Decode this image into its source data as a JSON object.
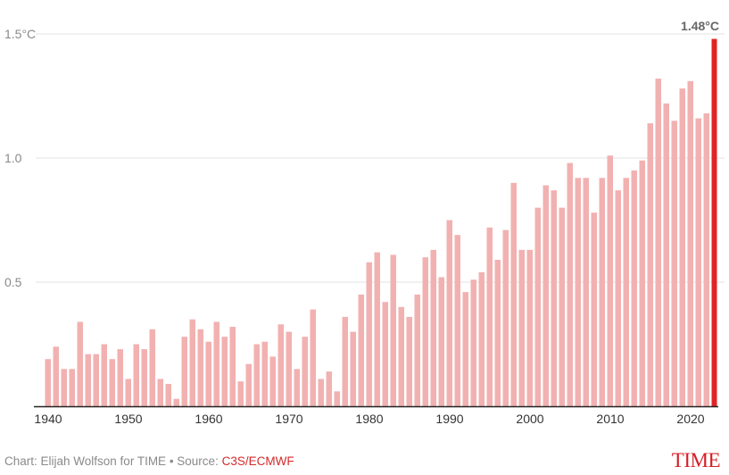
{
  "chart_data": {
    "type": "bar",
    "x": [
      1940,
      1941,
      1942,
      1943,
      1944,
      1945,
      1946,
      1947,
      1948,
      1949,
      1950,
      1951,
      1952,
      1953,
      1954,
      1955,
      1956,
      1957,
      1958,
      1959,
      1960,
      1961,
      1962,
      1963,
      1964,
      1965,
      1966,
      1967,
      1968,
      1969,
      1970,
      1971,
      1972,
      1973,
      1974,
      1975,
      1976,
      1977,
      1978,
      1979,
      1980,
      1981,
      1982,
      1983,
      1984,
      1985,
      1986,
      1987,
      1988,
      1989,
      1990,
      1991,
      1992,
      1993,
      1994,
      1995,
      1996,
      1997,
      1998,
      1999,
      2000,
      2001,
      2002,
      2003,
      2004,
      2005,
      2006,
      2007,
      2008,
      2009,
      2010,
      2011,
      2012,
      2013,
      2014,
      2015,
      2016,
      2017,
      2018,
      2019,
      2020,
      2021,
      2022,
      2023
    ],
    "values": [
      0.19,
      0.24,
      0.15,
      0.15,
      0.34,
      0.21,
      0.21,
      0.25,
      0.19,
      0.23,
      0.11,
      0.25,
      0.23,
      0.31,
      0.11,
      0.09,
      0.03,
      0.28,
      0.35,
      0.31,
      0.26,
      0.34,
      0.28,
      0.32,
      0.1,
      0.17,
      0.25,
      0.26,
      0.2,
      0.33,
      0.3,
      0.15,
      0.28,
      0.39,
      0.11,
      0.14,
      0.06,
      0.36,
      0.3,
      0.45,
      0.58,
      0.62,
      0.42,
      0.61,
      0.4,
      0.36,
      0.45,
      0.6,
      0.63,
      0.52,
      0.75,
      0.69,
      0.46,
      0.51,
      0.54,
      0.72,
      0.59,
      0.71,
      0.9,
      0.63,
      0.63,
      0.8,
      0.89,
      0.87,
      0.8,
      0.98,
      0.92,
      0.92,
      0.78,
      0.92,
      1.01,
      0.87,
      0.92,
      0.95,
      0.99,
      1.14,
      1.32,
      1.22,
      1.15,
      1.28,
      1.31,
      1.16,
      1.18,
      1.48
    ],
    "ylim": [
      0,
      1.5
    ],
    "yticks": [
      {
        "value": 0.5,
        "label": "0.5"
      },
      {
        "value": 1.0,
        "label": "1.0"
      },
      {
        "value": 1.5,
        "label": "1.5°C"
      }
    ],
    "xticks": [
      "1940",
      "1950",
      "1960",
      "1970",
      "1980",
      "1990",
      "2000",
      "2010",
      "2020"
    ],
    "annotation": "1.48°C",
    "grid": true,
    "colors": {
      "bar": "#f2b1b1",
      "highlight": "#e02424",
      "annotation": "#666666"
    }
  },
  "footer": {
    "credit": "Chart: Elijah Wolfson for TIME • Source: ",
    "source": "C3S/ECMWF",
    "logo": "TIME"
  }
}
